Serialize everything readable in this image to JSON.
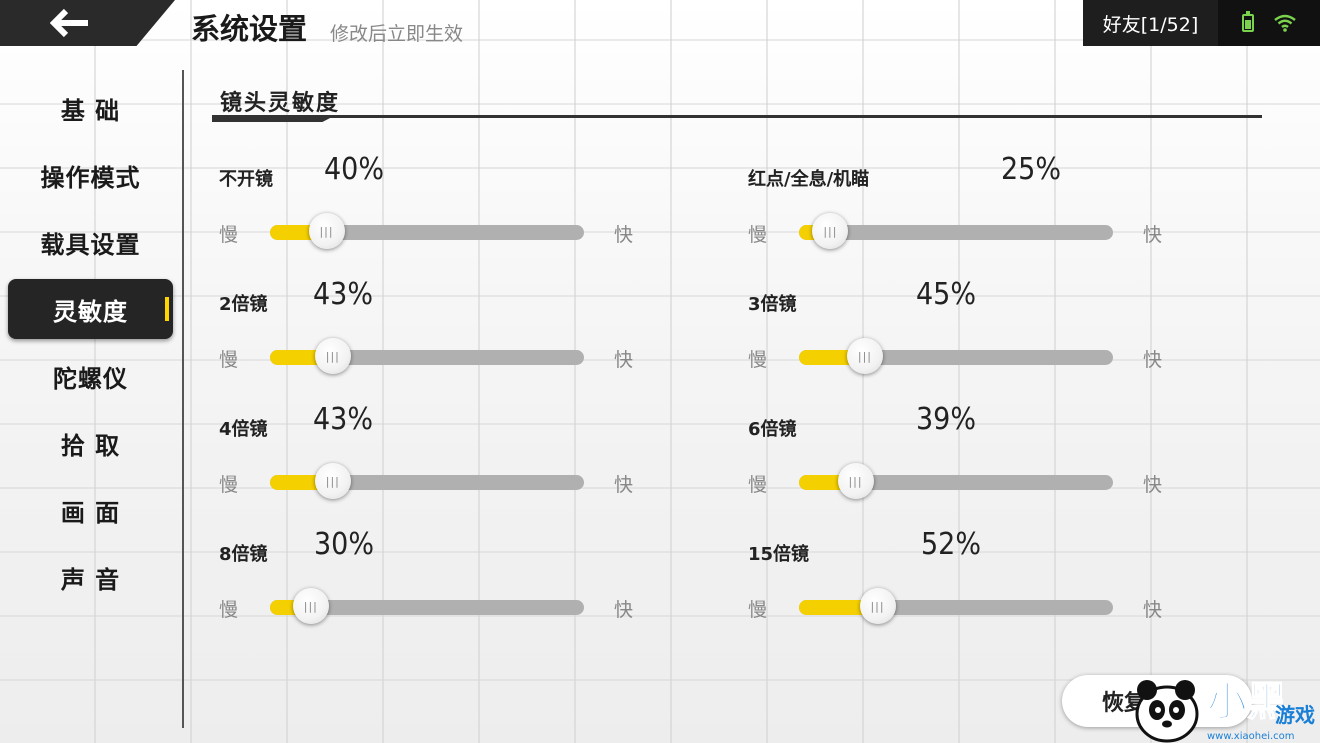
{
  "header": {
    "title": "系统设置",
    "subtitle": "修改后立即生效",
    "friends_label": "好友[1/52]"
  },
  "sidebar": {
    "items": [
      {
        "label": "基 础",
        "active": false
      },
      {
        "label": "操作模式",
        "active": false
      },
      {
        "label": "载具设置",
        "active": false
      },
      {
        "label": "灵敏度",
        "active": true
      },
      {
        "label": "陀螺仪",
        "active": false
      },
      {
        "label": "拾 取",
        "active": false
      },
      {
        "label": "画 面",
        "active": false
      },
      {
        "label": "声 音",
        "active": false
      }
    ]
  },
  "section": {
    "title": "镜头灵敏度"
  },
  "labels": {
    "slow": "慢",
    "fast": "快"
  },
  "sliders": [
    {
      "label": "不开镜",
      "value_text": "40%",
      "level": 0.18
    },
    {
      "label": "红点/全息/机瞄",
      "value_text": "25%",
      "level": 0.1
    },
    {
      "label": "2倍镜",
      "value_text": "43%",
      "level": 0.2
    },
    {
      "label": "3倍镜",
      "value_text": "45%",
      "level": 0.21
    },
    {
      "label": "4倍镜",
      "value_text": "43%",
      "level": 0.2
    },
    {
      "label": "6倍镜",
      "value_text": "39%",
      "level": 0.18
    },
    {
      "label": "8倍镜",
      "value_text": "30%",
      "level": 0.13
    },
    {
      "label": "15倍镜",
      "value_text": "52%",
      "level": 0.25
    }
  ],
  "reset_button": {
    "label": "恢复默认"
  },
  "watermark": {
    "text": "小黑游戏",
    "url_text": "www.xiaohei.com"
  },
  "colors": {
    "accent": "#f4d000",
    "track": "#b0b0b0",
    "dark": "#252525"
  }
}
